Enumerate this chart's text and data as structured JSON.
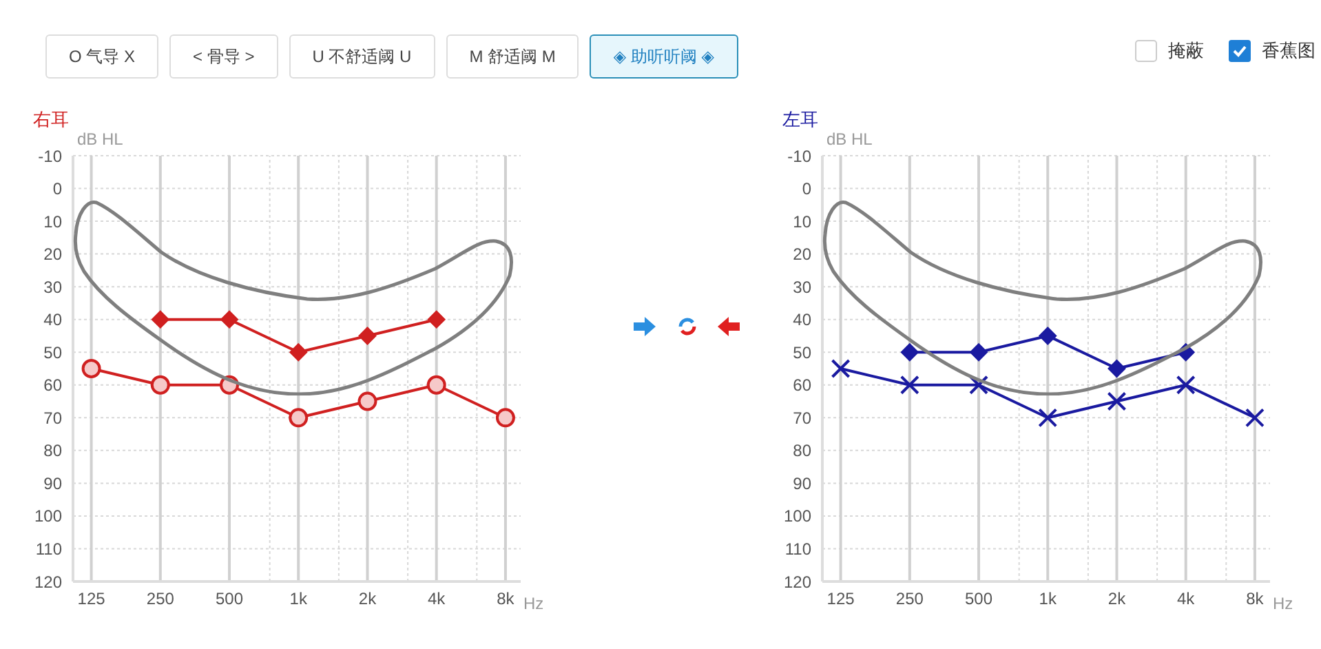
{
  "chart_data": [
    {
      "type": "line",
      "title": "右耳",
      "ylabel": "dB HL",
      "xlabel": "Hz",
      "log": "x",
      "xlim": [
        104,
        9320
      ],
      "xticks": [
        125,
        250,
        500,
        {
          "value": 750,
          "label": null
        },
        {
          "value": 1000,
          "label": "1k"
        },
        {
          "value": 1500,
          "label": null
        },
        {
          "value": 2000,
          "label": "2k"
        },
        {
          "value": 3000,
          "label": null
        },
        {
          "value": 4000,
          "label": "4k"
        },
        {
          "value": 6000,
          "label": null
        },
        {
          "value": 8000,
          "label": "8k"
        }
      ],
      "ylim": [
        120,
        -10
      ],
      "yticks": [
        -10,
        0,
        10,
        20,
        30,
        40,
        50,
        60,
        70,
        80,
        90,
        100,
        110,
        120
      ],
      "grid": true,
      "annotations": [
        "O 气导 X",
        "< 骨导 >",
        "U 不舒适阈 U",
        "M 舒适阈 M",
        "◈ 助听听阈 ◈",
        "掩蔽",
        "香蕉图"
      ],
      "series": [
        {
          "color": "#d02020",
          "marker": "diamond",
          "x": [
            250,
            500,
            1000,
            2000,
            4000
          ],
          "values": [
            40,
            40,
            50,
            45,
            40
          ]
        },
        {
          "color": "#d02020",
          "marker": "circle",
          "x": [
            125,
            250,
            500,
            1000,
            2000,
            4000,
            8000
          ],
          "values": [
            55,
            60,
            60,
            70,
            65,
            60,
            70
          ]
        }
      ]
    },
    {
      "type": "line",
      "title": "左耳",
      "ylabel": "dB HL",
      "xlabel": "Hz",
      "log": "x",
      "xlim": [
        104,
        9320
      ],
      "xticks": [
        125,
        250,
        500,
        {
          "value": 750,
          "label": null
        },
        {
          "value": 1000,
          "label": "1k"
        },
        {
          "value": 1500,
          "label": null
        },
        {
          "value": 2000,
          "label": "2k"
        },
        {
          "value": 3000,
          "label": null
        },
        {
          "value": 4000,
          "label": "4k"
        },
        {
          "value": 6000,
          "label": null
        },
        {
          "value": 8000,
          "label": "8k"
        }
      ],
      "ylim": [
        120,
        -10
      ],
      "yticks": [
        -10,
        0,
        10,
        20,
        30,
        40,
        50,
        60,
        70,
        80,
        90,
        100,
        110,
        120
      ],
      "grid": true,
      "series": [
        {
          "color": "#1a1aa0",
          "marker": "diamond",
          "x": [
            250,
            500,
            1000,
            2000,
            4000
          ],
          "values": [
            50,
            50,
            45,
            55,
            50
          ]
        },
        {
          "color": "#1a1aa0",
          "marker": "cross",
          "x": [
            125,
            250,
            500,
            1000,
            2000,
            4000,
            8000
          ],
          "values": [
            55,
            60,
            60,
            70,
            65,
            60,
            70
          ]
        }
      ]
    }
  ]
}
